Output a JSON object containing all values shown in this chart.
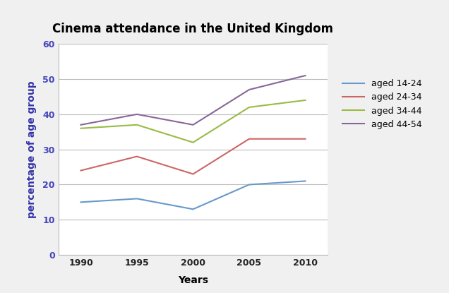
{
  "title": "Cinema attendance in the United Kingdom",
  "xlabel": "Years",
  "ylabel": "percentage of age group",
  "years": [
    1990,
    1995,
    2000,
    2005,
    2010
  ],
  "series": [
    {
      "label": "aged 14-24",
      "color": "#6699CC",
      "values": [
        15,
        16,
        13,
        20,
        21
      ]
    },
    {
      "label": "aged 24-34",
      "color": "#CC6666",
      "values": [
        24,
        28,
        23,
        33,
        33
      ]
    },
    {
      "label": "aged 34-44",
      "color": "#99BB44",
      "values": [
        36,
        37,
        32,
        42,
        44
      ]
    },
    {
      "label": "aged 44-54",
      "color": "#886699",
      "values": [
        37,
        40,
        37,
        47,
        51
      ]
    }
  ],
  "ylim": [
    0,
    60
  ],
  "yticks": [
    0,
    10,
    20,
    30,
    40,
    50,
    60
  ],
  "xticks": [
    1990,
    1995,
    2000,
    2005,
    2010
  ],
  "background_color": "#ffffff",
  "outer_background": "#f0f0f0",
  "grid_color": "#bbbbbb",
  "title_fontsize": 12,
  "axis_label_fontsize": 10,
  "legend_fontsize": 9,
  "tick_fontsize": 9,
  "ylabel_color": "#3333AA",
  "ytick_color": "#4444BB",
  "xtick_color": "#222222"
}
